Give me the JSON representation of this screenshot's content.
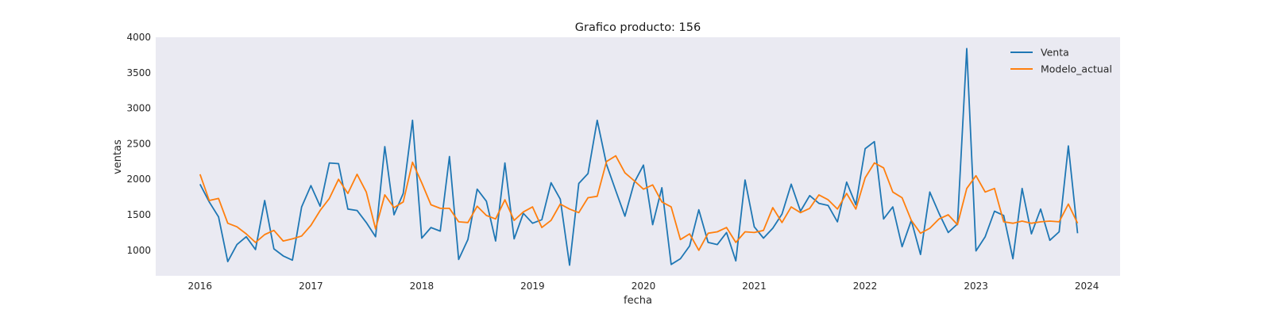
{
  "chart_data": {
    "type": "line",
    "title": "Grafico producto: 156",
    "xlabel": "fecha",
    "ylabel": "ventas",
    "xlim": [
      2015.6,
      2024.3
    ],
    "ylim": [
      640,
      4000
    ],
    "xticks": [
      "2016",
      "2017",
      "2018",
      "2019",
      "2020",
      "2021",
      "2022",
      "2023",
      "2024"
    ],
    "yticks": [
      "1000",
      "1500",
      "2000",
      "2500",
      "3000",
      "3500",
      "4000"
    ],
    "grid": false,
    "background": "#eaeaf2",
    "legend_position": "top-right",
    "x_start": "2016-01",
    "x_step": "month",
    "series": [
      {
        "name": "Venta",
        "color": "#1f77b4",
        "values": [
          1930,
          1680,
          1470,
          840,
          1080,
          1190,
          1010,
          1700,
          1020,
          920,
          860,
          1610,
          1910,
          1620,
          2230,
          2220,
          1580,
          1560,
          1390,
          1190,
          2460,
          1500,
          1800,
          2830,
          1170,
          1320,
          1270,
          2320,
          870,
          1150,
          1860,
          1690,
          1130,
          2230,
          1160,
          1520,
          1380,
          1430,
          1950,
          1720,
          790,
          1940,
          2080,
          2830,
          2210,
          1840,
          1480,
          1950,
          2200,
          1360,
          1880,
          800,
          880,
          1060,
          1570,
          1110,
          1080,
          1250,
          850,
          1990,
          1330,
          1170,
          1310,
          1510,
          1930,
          1550,
          1770,
          1660,
          1630,
          1400,
          1960,
          1640,
          2430,
          2530,
          1440,
          1610,
          1050,
          1420,
          940,
          1820,
          1520,
          1250,
          1370,
          3840,
          990,
          1190,
          1550,
          1490,
          880,
          1870,
          1230,
          1580,
          1140,
          1260,
          2470,
          1240
        ]
      },
      {
        "name": "Modelo_actual",
        "color": "#ff7f0e",
        "values": [
          2070,
          1700,
          1730,
          1380,
          1330,
          1230,
          1110,
          1220,
          1280,
          1130,
          1160,
          1200,
          1350,
          1560,
          1730,
          2000,
          1800,
          2070,
          1820,
          1300,
          1780,
          1600,
          1680,
          2240,
          1950,
          1640,
          1590,
          1590,
          1400,
          1390,
          1620,
          1490,
          1440,
          1710,
          1420,
          1540,
          1610,
          1320,
          1420,
          1650,
          1580,
          1530,
          1740,
          1760,
          2250,
          2330,
          2090,
          1980,
          1860,
          1920,
          1680,
          1610,
          1150,
          1230,
          1000,
          1240,
          1260,
          1320,
          1110,
          1260,
          1250,
          1280,
          1600,
          1390,
          1610,
          1530,
          1590,
          1780,
          1710,
          1580,
          1800,
          1580,
          2020,
          2230,
          2160,
          1820,
          1740,
          1420,
          1240,
          1310,
          1440,
          1500,
          1360,
          1870,
          2050,
          1820,
          1870,
          1400,
          1380,
          1410,
          1380,
          1400,
          1410,
          1400,
          1650,
          1380
        ]
      }
    ]
  }
}
